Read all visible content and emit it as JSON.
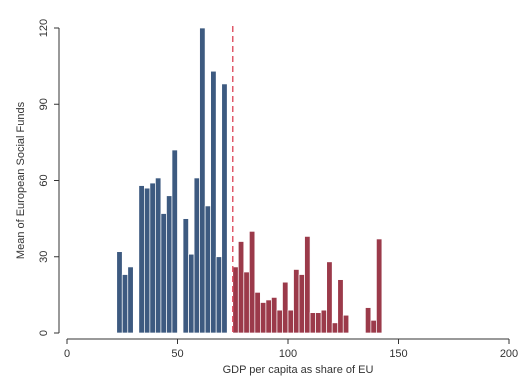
{
  "chart_data": {
    "type": "bar",
    "xlabel": "GDP per capita as share of EU",
    "ylabel": "Mean of European Social Funds",
    "xlim": [
      0,
      200
    ],
    "ylim": [
      0,
      120
    ],
    "xticks": [
      "0",
      "50",
      "100",
      "150",
      "200"
    ],
    "yticks": [
      "0",
      "30",
      "60",
      "90",
      "120"
    ],
    "cutoff": 75,
    "bin_width": 2.5,
    "grid": false,
    "colors": {
      "left": "#3d5a80",
      "right": "#9b3a4a",
      "cutoff_line": "#e05a6a",
      "axis": "#333333"
    },
    "series": [
      {
        "side": "below-cutoff",
        "bins": [
          {
            "x": 22.5,
            "y": 32
          },
          {
            "x": 25,
            "y": 23
          },
          {
            "x": 27.5,
            "y": 26
          },
          {
            "x": 32.5,
            "y": 58
          },
          {
            "x": 35,
            "y": 57
          },
          {
            "x": 37.5,
            "y": 59
          },
          {
            "x": 40,
            "y": 61
          },
          {
            "x": 42.5,
            "y": 47
          },
          {
            "x": 45,
            "y": 54
          },
          {
            "x": 47.5,
            "y": 72
          },
          {
            "x": 52.5,
            "y": 45
          },
          {
            "x": 55,
            "y": 31
          },
          {
            "x": 57.5,
            "y": 61
          },
          {
            "x": 60,
            "y": 120
          },
          {
            "x": 62.5,
            "y": 50
          },
          {
            "x": 65,
            "y": 103
          },
          {
            "x": 67.5,
            "y": 30
          },
          {
            "x": 70,
            "y": 98
          }
        ]
      },
      {
        "side": "above-cutoff",
        "bins": [
          {
            "x": 75,
            "y": 26
          },
          {
            "x": 77.5,
            "y": 36
          },
          {
            "x": 80,
            "y": 24
          },
          {
            "x": 82.5,
            "y": 40
          },
          {
            "x": 85,
            "y": 16
          },
          {
            "x": 87.5,
            "y": 12
          },
          {
            "x": 90,
            "y": 13
          },
          {
            "x": 92.5,
            "y": 14
          },
          {
            "x": 95,
            "y": 9
          },
          {
            "x": 97.5,
            "y": 20
          },
          {
            "x": 100,
            "y": 9
          },
          {
            "x": 102.5,
            "y": 25
          },
          {
            "x": 105,
            "y": 23
          },
          {
            "x": 107.5,
            "y": 38
          },
          {
            "x": 110,
            "y": 8
          },
          {
            "x": 112.5,
            "y": 8
          },
          {
            "x": 115,
            "y": 9
          },
          {
            "x": 117.5,
            "y": 28
          },
          {
            "x": 120,
            "y": 4
          },
          {
            "x": 122.5,
            "y": 21
          },
          {
            "x": 125,
            "y": 7
          },
          {
            "x": 135,
            "y": 10
          },
          {
            "x": 137.5,
            "y": 5
          },
          {
            "x": 140,
            "y": 37
          }
        ]
      }
    ]
  }
}
